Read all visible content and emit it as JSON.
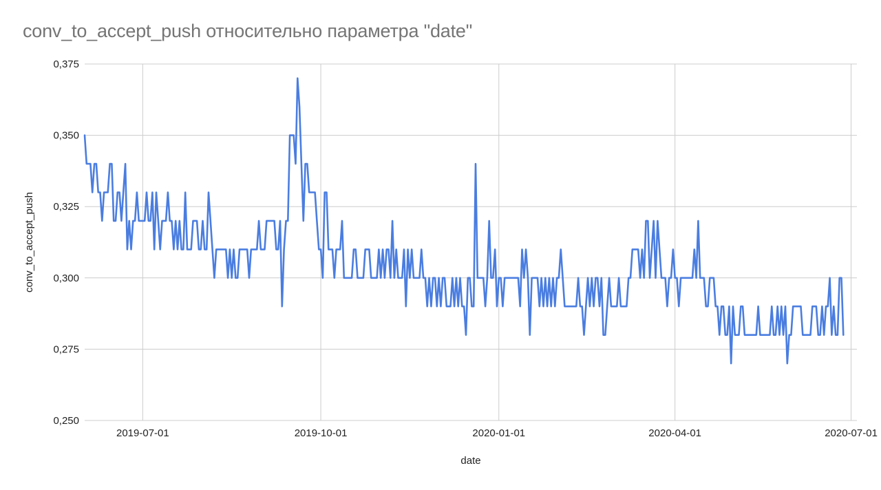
{
  "colors": {
    "series": "#4a7de0",
    "grid": "#cccccc",
    "title": "#757575",
    "text": "#222222"
  },
  "chart_data": {
    "type": "line",
    "title": "conv_to_accept_push относительно параметра \"date\"",
    "xlabel": "date",
    "ylabel": "conv_to_accept_push",
    "x_range": [
      "2019-06-01",
      "2020-07-04"
    ],
    "ylim": [
      0.25,
      0.375
    ],
    "x_ticks": [
      "2019-07-01",
      "2019-10-01",
      "2020-01-01",
      "2020-04-01",
      "2020-07-01"
    ],
    "y_ticks": [
      "0,250",
      "0,275",
      "0,300",
      "0,325",
      "0,350",
      "0,375"
    ],
    "y_tick_values": [
      0.25,
      0.275,
      0.3,
      0.325,
      0.35,
      0.375
    ],
    "grid": true,
    "legend": "none",
    "series": [
      {
        "color": "#4a7de0",
        "x_start": "2019-06-01",
        "x_step_days": 1,
        "values": [
          0.35,
          0.34,
          0.34,
          0.34,
          0.33,
          0.34,
          0.34,
          0.33,
          0.33,
          0.32,
          0.33,
          0.33,
          0.33,
          0.34,
          0.34,
          0.32,
          0.32,
          0.33,
          0.33,
          0.32,
          0.33,
          0.34,
          0.31,
          0.32,
          0.31,
          0.32,
          0.32,
          0.33,
          0.32,
          0.32,
          0.32,
          0.32,
          0.33,
          0.32,
          0.32,
          0.33,
          0.31,
          0.33,
          0.32,
          0.31,
          0.32,
          0.32,
          0.32,
          0.33,
          0.32,
          0.32,
          0.31,
          0.32,
          0.31,
          0.32,
          0.31,
          0.31,
          0.33,
          0.31,
          0.31,
          0.31,
          0.32,
          0.32,
          0.32,
          0.31,
          0.31,
          0.32,
          0.31,
          0.31,
          0.33,
          0.32,
          0.31,
          0.3,
          0.31,
          0.31,
          0.31,
          0.31,
          0.31,
          0.31,
          0.3,
          0.31,
          0.3,
          0.31,
          0.3,
          0.3,
          0.31,
          0.31,
          0.31,
          0.31,
          0.31,
          0.3,
          0.31,
          0.31,
          0.31,
          0.31,
          0.32,
          0.31,
          0.31,
          0.31,
          0.32,
          0.32,
          0.32,
          0.32,
          0.32,
          0.31,
          0.31,
          0.32,
          0.29,
          0.31,
          0.32,
          0.32,
          0.35,
          0.35,
          0.35,
          0.34,
          0.37,
          0.36,
          0.34,
          0.32,
          0.34,
          0.34,
          0.33,
          0.33,
          0.33,
          0.33,
          0.32,
          0.31,
          0.31,
          0.3,
          0.33,
          0.33,
          0.31,
          0.31,
          0.31,
          0.3,
          0.31,
          0.31,
          0.31,
          0.32,
          0.3,
          0.3,
          0.3,
          0.3,
          0.3,
          0.31,
          0.31,
          0.3,
          0.3,
          0.3,
          0.3,
          0.31,
          0.31,
          0.31,
          0.3,
          0.3,
          0.3,
          0.3,
          0.31,
          0.3,
          0.31,
          0.3,
          0.31,
          0.31,
          0.3,
          0.32,
          0.3,
          0.31,
          0.3,
          0.3,
          0.3,
          0.31,
          0.29,
          0.31,
          0.3,
          0.31,
          0.3,
          0.3,
          0.3,
          0.3,
          0.31,
          0.3,
          0.3,
          0.29,
          0.3,
          0.29,
          0.3,
          0.3,
          0.29,
          0.3,
          0.29,
          0.3,
          0.3,
          0.29,
          0.29,
          0.29,
          0.3,
          0.29,
          0.3,
          0.29,
          0.3,
          0.29,
          0.29,
          0.28,
          0.3,
          0.3,
          0.29,
          0.29,
          0.34,
          0.3,
          0.3,
          0.3,
          0.3,
          0.29,
          0.3,
          0.32,
          0.3,
          0.3,
          0.31,
          0.29,
          0.3,
          0.3,
          0.29,
          0.3,
          0.3,
          0.3,
          0.3,
          0.3,
          0.3,
          0.3,
          0.3,
          0.29,
          0.31,
          0.3,
          0.31,
          0.3,
          0.28,
          0.3,
          0.3,
          0.3,
          0.3,
          0.29,
          0.3,
          0.29,
          0.3,
          0.29,
          0.3,
          0.29,
          0.3,
          0.29,
          0.3,
          0.3,
          0.31,
          0.3,
          0.29,
          0.29,
          0.29,
          0.29,
          0.29,
          0.29,
          0.29,
          0.3,
          0.29,
          0.29,
          0.28,
          0.29,
          0.3,
          0.29,
          0.3,
          0.29,
          0.3,
          0.3,
          0.29,
          0.3,
          0.28,
          0.28,
          0.29,
          0.3,
          0.29,
          0.29,
          0.29,
          0.29,
          0.3,
          0.29,
          0.29,
          0.29,
          0.29,
          0.3,
          0.3,
          0.31,
          0.31,
          0.31,
          0.31,
          0.3,
          0.31,
          0.3,
          0.32,
          0.32,
          0.3,
          0.31,
          0.32,
          0.3,
          0.32,
          0.31,
          0.3,
          0.3,
          0.3,
          0.29,
          0.3,
          0.3,
          0.31,
          0.3,
          0.3,
          0.29,
          0.3,
          0.3,
          0.3,
          0.3,
          0.3,
          0.3,
          0.3,
          0.31,
          0.3,
          0.32,
          0.3,
          0.3,
          0.3,
          0.29,
          0.29,
          0.3,
          0.3,
          0.3,
          0.29,
          0.29,
          0.28,
          0.29,
          0.29,
          0.28,
          0.28,
          0.29,
          0.27,
          0.29,
          0.28,
          0.28,
          0.28,
          0.29,
          0.29,
          0.28,
          0.28,
          0.28,
          0.28,
          0.28,
          0.28,
          0.28,
          0.29,
          0.28,
          0.28,
          0.28,
          0.28,
          0.28,
          0.28,
          0.29,
          0.28,
          0.28,
          0.29,
          0.28,
          0.29,
          0.28,
          0.29,
          0.27,
          0.28,
          0.28,
          0.29,
          0.29,
          0.29,
          0.29,
          0.29,
          0.28,
          0.28,
          0.28,
          0.28,
          0.28,
          0.29,
          0.29,
          0.29,
          0.28,
          0.28,
          0.29,
          0.28,
          0.29,
          0.29,
          0.3,
          0.28,
          0.29,
          0.28,
          0.28,
          0.3,
          0.3,
          0.28
        ]
      }
    ]
  }
}
